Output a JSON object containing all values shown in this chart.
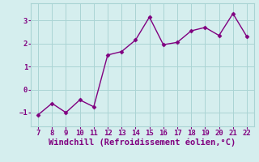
{
  "x": [
    7,
    8,
    9,
    10,
    11,
    12,
    13,
    14,
    15,
    16,
    17,
    18,
    19,
    20,
    21,
    22
  ],
  "y": [
    -1.1,
    -0.6,
    -1.0,
    -0.45,
    -0.75,
    1.5,
    1.65,
    2.15,
    3.15,
    1.95,
    2.05,
    2.55,
    2.7,
    2.35,
    3.3,
    2.3
  ],
  "line_color": "#800080",
  "marker": "D",
  "marker_size": 2.5,
  "linewidth": 1.0,
  "xlabel": "Windchill (Refroidissement éolien,°C)",
  "xlim": [
    6.5,
    22.5
  ],
  "ylim": [
    -1.6,
    3.75
  ],
  "yticks": [
    -1,
    0,
    1,
    2,
    3
  ],
  "xticks": [
    7,
    8,
    9,
    10,
    11,
    12,
    13,
    14,
    15,
    16,
    17,
    18,
    19,
    20,
    21,
    22
  ],
  "bg_color": "#d5eeee",
  "grid_color": "#aad4d4",
  "xlabel_color": "#800080",
  "tick_color": "#800080",
  "tick_fontsize": 6.5,
  "xlabel_fontsize": 7.5
}
